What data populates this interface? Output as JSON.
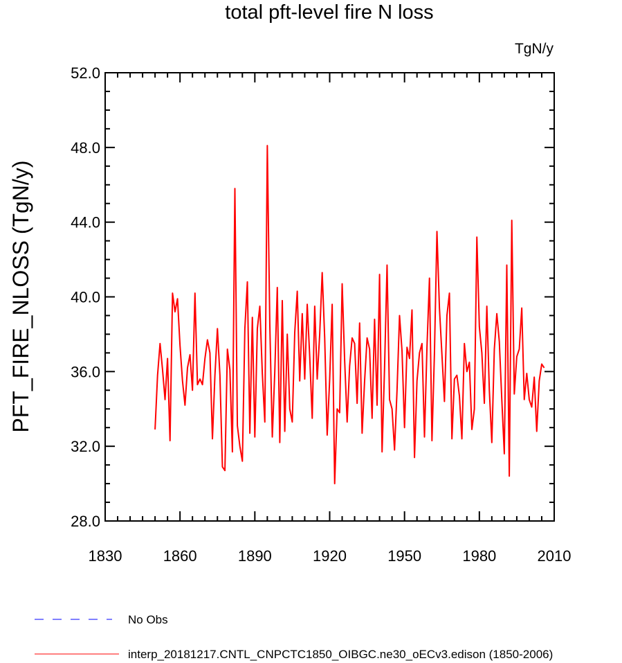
{
  "chart_data": {
    "type": "line",
    "title": "total pft-level fire N loss",
    "units": "TgN/y",
    "ylabel": "PFT_FIRE_NLOSS  (TgN/y)",
    "xlabel": "",
    "xlim": [
      1830,
      2010
    ],
    "ylim": [
      28.0,
      52.0
    ],
    "x_ticks": [
      1830,
      1860,
      1890,
      1920,
      1950,
      1980,
      2010
    ],
    "x_tick_labels": [
      "1830",
      "1860",
      "1890",
      "1920",
      "1950",
      "1980",
      "2010"
    ],
    "y_ticks": [
      28,
      32,
      36,
      40,
      44,
      48,
      52
    ],
    "y_tick_labels": [
      "28.0",
      "32.0",
      "36.0",
      "40.0",
      "44.0",
      "48.0",
      "52.0"
    ],
    "legend": [
      {
        "label": "No Obs",
        "color": "#0000ff",
        "style": "dashed"
      },
      {
        "label": "interp_20181217.CNTL_CNPCTC1850_OIBGC.ne30_oECv3.edison (1850-2006)",
        "color": "#ff0000",
        "style": "solid"
      }
    ],
    "series": [
      {
        "name": "interp_20181217.CNTL_CNPCTC1850_OIBGC.ne30_oECv3.edison (1850-2006)",
        "color": "#ff0000",
        "x_start": 1850,
        "x_step": 1,
        "values": [
          32.9,
          35.8,
          37.5,
          36.1,
          34.5,
          36.7,
          32.3,
          40.2,
          39.2,
          39.9,
          37.4,
          35.5,
          34.2,
          36.2,
          36.9,
          35.0,
          40.2,
          35.3,
          35.6,
          35.3,
          36.7,
          37.7,
          37.0,
          32.4,
          35.8,
          38.3,
          35.8,
          30.9,
          30.7,
          37.2,
          36.1,
          31.7,
          45.8,
          33.1,
          32.0,
          31.2,
          38.3,
          40.8,
          32.7,
          38.9,
          32.5,
          38.3,
          39.5,
          35.9,
          33.3,
          48.1,
          38.5,
          32.5,
          36.0,
          40.5,
          32.2,
          39.8,
          32.8,
          38.0,
          34.0,
          33.3,
          38.1,
          40.3,
          35.5,
          39.1,
          35.6,
          39.6,
          36.8,
          33.5,
          39.5,
          35.6,
          38.0,
          41.3,
          37.8,
          32.6,
          35.6,
          39.6,
          30.0,
          34.0,
          33.8,
          40.7,
          36.6,
          33.3,
          36.3,
          37.8,
          37.5,
          34.3,
          38.6,
          32.7,
          35.5,
          37.8,
          37.2,
          33.5,
          38.8,
          34.2,
          41.2,
          31.7,
          36.2,
          41.7,
          34.5,
          34.0,
          31.8,
          35.0,
          39.0,
          37.1,
          33.0,
          37.3,
          36.7,
          39.3,
          31.4,
          35.5,
          37.0,
          37.5,
          32.5,
          37.3,
          41.0,
          32.3,
          37.0,
          43.5,
          39.4,
          36.9,
          34.4,
          39.0,
          40.2,
          32.4,
          35.6,
          35.8,
          34.7,
          32.4,
          37.5,
          36.0,
          36.5,
          32.9,
          34.0,
          43.2,
          38.4,
          37.0,
          34.3,
          39.5,
          35.0,
          32.2,
          37.2,
          39.1,
          37.6,
          34.5,
          31.6,
          41.7,
          30.4,
          44.1,
          34.8,
          36.8,
          37.2,
          39.4,
          34.5,
          35.9,
          34.5,
          34.1,
          35.7,
          32.8,
          35.5,
          36.4,
          36.2
        ]
      }
    ]
  }
}
